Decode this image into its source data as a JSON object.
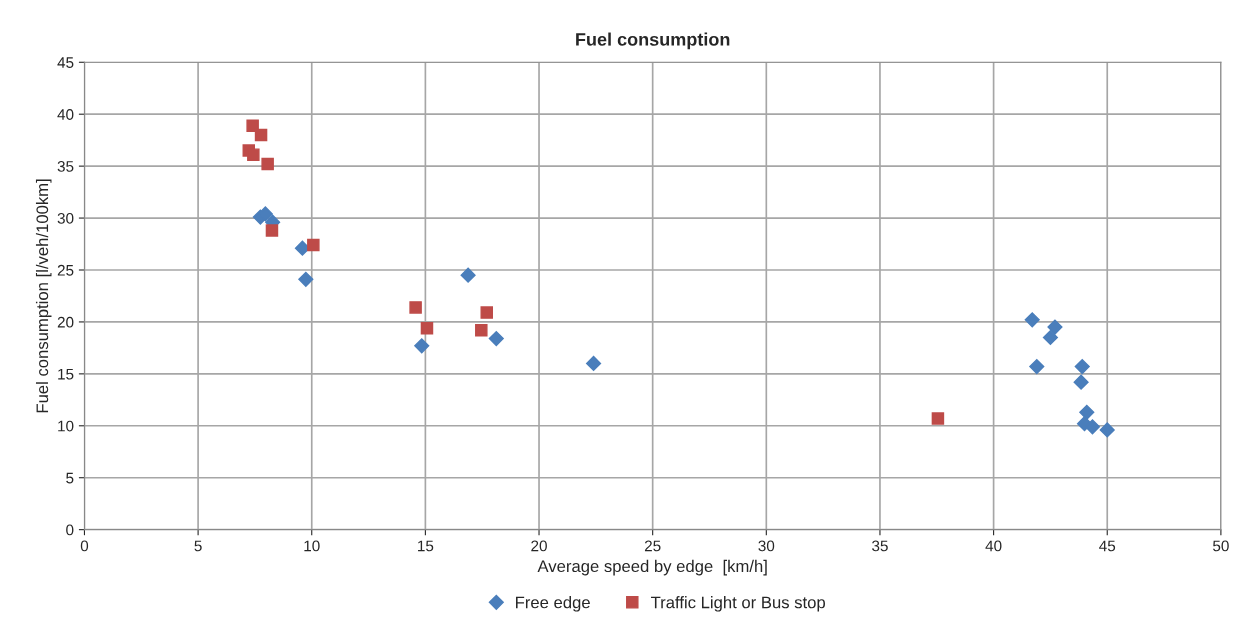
{
  "chart_data": {
    "type": "scatter",
    "title": "Fuel consumption",
    "xlabel": "Average speed by edge  [km/h]",
    "ylabel": "Fuel consumption [l/veh/100km]",
    "xlim": [
      0,
      50
    ],
    "xticks": [
      0,
      5,
      10,
      15,
      20,
      25,
      30,
      35,
      40,
      45,
      50
    ],
    "ylim": [
      0,
      45
    ],
    "yticks": [
      0,
      5,
      10,
      15,
      20,
      25,
      30,
      35,
      40,
      45
    ],
    "grid": true,
    "legend": "bottom",
    "series": [
      {
        "name": "Free edge",
        "color": "#4a7ebb",
        "marker": "diamond",
        "x": [
          7.74,
          7.96,
          8.28,
          9.59,
          9.74,
          16.88,
          14.84,
          18.12,
          22.4,
          41.7,
          41.9,
          42.7,
          42.5,
          43.9,
          43.85,
          44.1,
          44.0,
          44.35,
          45.0
        ],
        "values": [
          30.1,
          30.4,
          29.6,
          27.1,
          24.1,
          24.5,
          17.7,
          18.4,
          16.0,
          20.2,
          15.7,
          19.5,
          18.5,
          15.7,
          14.2,
          11.3,
          10.2,
          9.9,
          9.6
        ]
      },
      {
        "name": "Traffic Light or Bus stop",
        "color": "#be4b48",
        "marker": "square",
        "x": [
          7.4,
          7.77,
          7.23,
          7.43,
          8.06,
          8.25,
          10.07,
          14.57,
          15.07,
          17.7,
          17.46,
          37.55
        ],
        "values": [
          38.9,
          38.0,
          36.5,
          36.1,
          35.2,
          28.8,
          27.4,
          21.4,
          19.4,
          20.9,
          19.2,
          10.7
        ]
      }
    ]
  }
}
